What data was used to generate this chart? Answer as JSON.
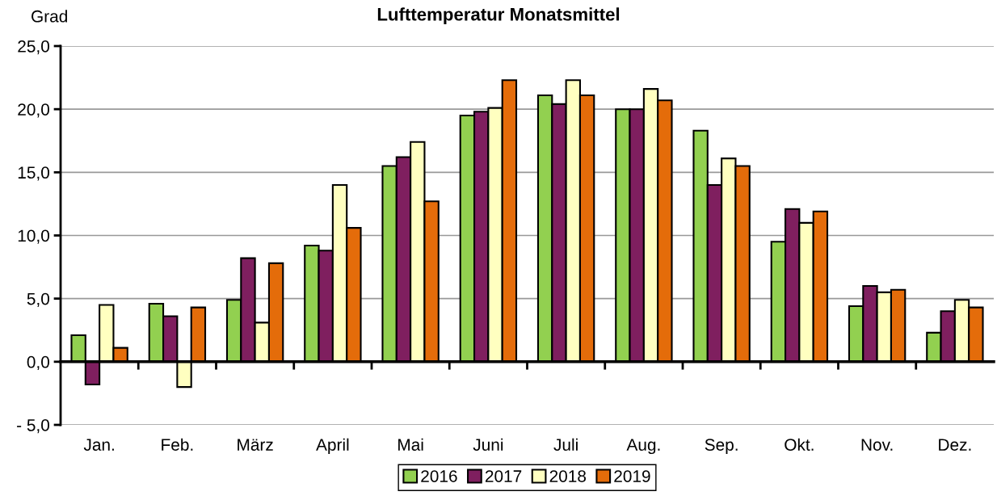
{
  "chart_data": {
    "type": "bar",
    "title": "Lufttemperatur Monatsmittel",
    "ylabel": "Grad",
    "categories": [
      "Jan.",
      "Feb.",
      "März",
      "April",
      "Mai",
      "Juni",
      "Juli",
      "Aug.",
      "Sep.",
      "Okt.",
      "Nov.",
      "Dez."
    ],
    "series": [
      {
        "name": "2016",
        "color": "#92d050",
        "values": [
          2.1,
          4.6,
          4.9,
          9.2,
          15.5,
          19.5,
          21.1,
          20.0,
          18.3,
          9.5,
          4.4,
          2.3
        ]
      },
      {
        "name": "2017",
        "color": "#7f1f5f",
        "values": [
          -1.8,
          3.6,
          8.2,
          8.8,
          16.2,
          19.8,
          20.4,
          20.0,
          14.0,
          12.1,
          6.0,
          4.0
        ]
      },
      {
        "name": "2018",
        "color": "#ffffc0",
        "values": [
          4.5,
          -2.0,
          3.1,
          14.0,
          17.4,
          20.1,
          22.3,
          21.6,
          16.1,
          11.0,
          5.5,
          4.9
        ]
      },
      {
        "name": "2019",
        "color": "#e46c0a",
        "values": [
          1.1,
          4.3,
          7.8,
          10.6,
          12.7,
          22.3,
          21.1,
          20.7,
          15.5,
          11.9,
          5.7,
          4.3
        ]
      }
    ],
    "ylim": [
      -5,
      25
    ],
    "yticks": [
      {
        "value": -5,
        "label": "- 5,0"
      },
      {
        "value": 0,
        "label": "0,0"
      },
      {
        "value": 5,
        "label": "5,0"
      },
      {
        "value": 10,
        "label": "10,0"
      },
      {
        "value": 15,
        "label": "15,0"
      },
      {
        "value": 20,
        "label": "20,0"
      },
      {
        "value": 25,
        "label": "25,0"
      }
    ],
    "grid": "y",
    "legend": "bottom"
  }
}
